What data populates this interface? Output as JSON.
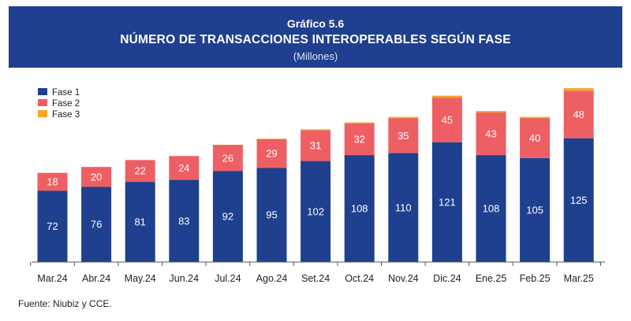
{
  "header": {
    "figure_number": "Gráfico 5.6",
    "title": "NÚMERO DE TRANSACCIONES INTEROPERABLES SEGÚN FASE",
    "subtitle": "(Millones)"
  },
  "footer": {
    "source": "Fuente: Niubiz y CCE."
  },
  "colors": {
    "header_bg": "#1f3f8f",
    "fase1": "#1f3f8f",
    "fase2": "#ee5f63",
    "fase3": "#f5a623"
  },
  "chart_data": {
    "type": "bar",
    "stacked": true,
    "title": "NÚMERO DE TRANSACCIONES INTEROPERABLES SEGÚN FASE",
    "subtitle": "(Millones)",
    "categories": [
      "Mar.24",
      "Abr.24",
      "May.24",
      "Jun.24",
      "Jul.24",
      "Ago.24",
      "Set.24",
      "Oct.24",
      "Nov.24",
      "Dic.24",
      "Ene.25",
      "Feb.25",
      "Mar.25"
    ],
    "series": [
      {
        "name": "Fase 1",
        "color": "#1f3f8f",
        "values": [
          72,
          76,
          81,
          83,
          92,
          95,
          102,
          108,
          110,
          121,
          108,
          105,
          125
        ]
      },
      {
        "name": "Fase 2",
        "color": "#ee5f63",
        "values": [
          18,
          20,
          22,
          24,
          26,
          29,
          31,
          32,
          35,
          45,
          43,
          40,
          48
        ]
      },
      {
        "name": "Fase 3",
        "color": "#f5a623",
        "values": [
          0,
          0,
          0,
          0,
          0.5,
          0.5,
          1,
          1,
          1.5,
          2,
          1.5,
          1.5,
          2.5
        ]
      }
    ],
    "data_labels_series": [
      "Fase 1",
      "Fase 2"
    ],
    "legend_position": "top-left",
    "grid": false,
    "ylim": [
      0,
      178
    ]
  }
}
